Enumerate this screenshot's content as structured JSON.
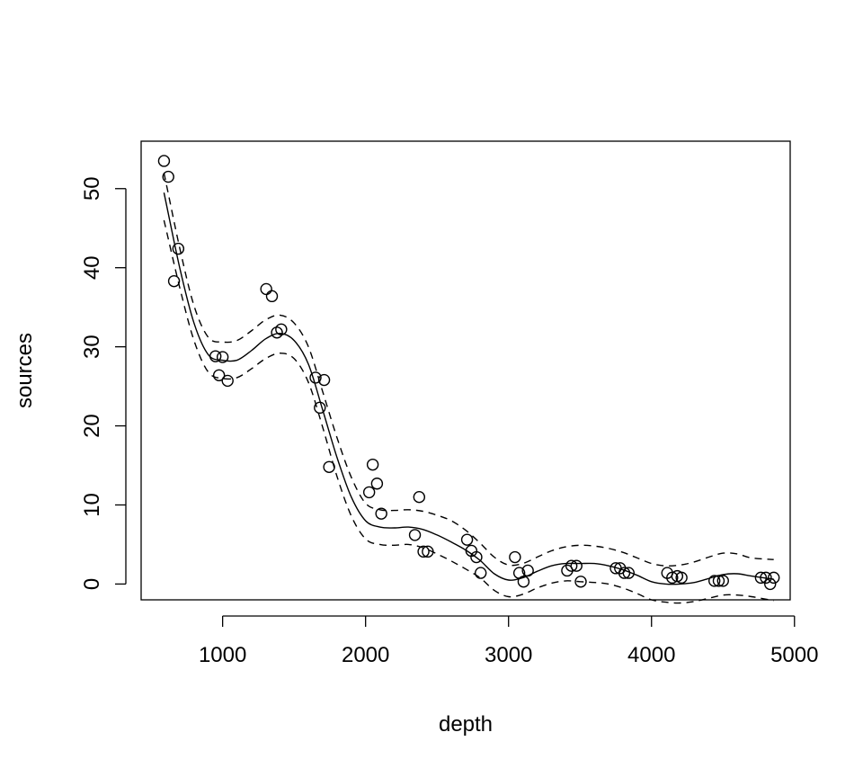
{
  "chart_data": {
    "type": "scatter",
    "xlabel": "depth",
    "ylabel": "sources",
    "xlim": [
      430,
      4970
    ],
    "ylim": [
      -2,
      56
    ],
    "x_ticks": [
      1000,
      2000,
      3000,
      4000,
      5000
    ],
    "y_ticks": [
      0,
      10,
      20,
      30,
      40,
      50
    ],
    "x_tick_labels": [
      "1000",
      "2000",
      "3000",
      "4000",
      "5000"
    ],
    "y_tick_labels": [
      "0",
      "10",
      "20",
      "30",
      "40",
      "50"
    ],
    "grid": false,
    "points": [
      [
        590,
        53.5
      ],
      [
        620,
        51.5
      ],
      [
        660,
        38.3
      ],
      [
        690,
        42.4
      ],
      [
        950,
        28.8
      ],
      [
        975,
        26.4
      ],
      [
        1000,
        28.7
      ],
      [
        1035,
        25.7
      ],
      [
        1305,
        37.3
      ],
      [
        1345,
        36.4
      ],
      [
        1380,
        31.8
      ],
      [
        1410,
        32.2
      ],
      [
        1650,
        26.1
      ],
      [
        1680,
        22.3
      ],
      [
        1710,
        25.8
      ],
      [
        1745,
        14.8
      ],
      [
        2025,
        11.6
      ],
      [
        2050,
        15.1
      ],
      [
        2080,
        12.7
      ],
      [
        2110,
        8.9
      ],
      [
        2345,
        6.2
      ],
      [
        2375,
        11.0
      ],
      [
        2405,
        4.1
      ],
      [
        2435,
        4.1
      ],
      [
        2710,
        5.6
      ],
      [
        2740,
        4.2
      ],
      [
        2775,
        3.4
      ],
      [
        2805,
        1.4
      ],
      [
        3045,
        3.4
      ],
      [
        3075,
        1.4
      ],
      [
        3105,
        0.3
      ],
      [
        3135,
        1.7
      ],
      [
        3410,
        1.7
      ],
      [
        3440,
        2.3
      ],
      [
        3475,
        2.3
      ],
      [
        3505,
        0.3
      ],
      [
        3750,
        2.0
      ],
      [
        3780,
        2.0
      ],
      [
        3810,
        1.4
      ],
      [
        3840,
        1.4
      ],
      [
        4110,
        1.4
      ],
      [
        4145,
        0.8
      ],
      [
        4180,
        1.0
      ],
      [
        4210,
        0.8
      ],
      [
        4440,
        0.4
      ],
      [
        4470,
        0.4
      ],
      [
        4500,
        0.4
      ],
      [
        4765,
        0.8
      ],
      [
        4800,
        0.8
      ],
      [
        4830,
        0.0
      ],
      [
        4855,
        0.8
      ]
    ],
    "series": [
      {
        "style": "solid",
        "x": [
          590,
          700,
          800,
          900,
          1000,
          1100,
          1200,
          1300,
          1400,
          1500,
          1600,
          1700,
          1800,
          1900,
          2000,
          2100,
          2200,
          2300,
          2400,
          2500,
          2600,
          2700,
          2800,
          2900,
          3000,
          3100,
          3200,
          3300,
          3400,
          3500,
          3600,
          3700,
          3800,
          3900,
          4000,
          4100,
          4200,
          4300,
          4400,
          4500,
          4600,
          4700,
          4855
        ],
        "y": [
          49.5,
          40.0,
          33.0,
          29.0,
          28.3,
          28.3,
          29.5,
          31.0,
          31.7,
          30.8,
          27.8,
          22.0,
          16.0,
          11.0,
          8.0,
          7.2,
          7.1,
          7.2,
          6.9,
          6.2,
          5.3,
          4.3,
          3.0,
          1.3,
          0.5,
          0.8,
          1.6,
          2.3,
          2.6,
          2.6,
          2.6,
          2.3,
          1.8,
          1.1,
          0.3,
          0.0,
          0.0,
          0.2,
          0.7,
          1.2,
          1.3,
          1.0,
          0.6
        ]
      },
      {
        "style": "dashed",
        "x": [
          590,
          700,
          800,
          900,
          1000,
          1100,
          1200,
          1300,
          1400,
          1500,
          1600,
          1700,
          1800,
          1900,
          2000,
          2100,
          2200,
          2300,
          2400,
          2500,
          2600,
          2700,
          2800,
          2900,
          3000,
          3100,
          3200,
          3300,
          3400,
          3500,
          3600,
          3700,
          3800,
          3900,
          4000,
          4100,
          4200,
          4300,
          4400,
          4500,
          4600,
          4700,
          4855
        ],
        "y": [
          52.0,
          42.5,
          35.2,
          31.2,
          30.6,
          30.8,
          32.0,
          33.4,
          34.0,
          33.0,
          30.0,
          24.3,
          18.5,
          13.5,
          10.2,
          9.4,
          9.3,
          9.4,
          9.2,
          8.7,
          8.0,
          6.8,
          5.2,
          3.4,
          2.4,
          2.6,
          3.4,
          4.2,
          4.7,
          4.9,
          4.8,
          4.5,
          4.0,
          3.3,
          2.6,
          2.3,
          2.4,
          2.8,
          3.4,
          3.9,
          3.8,
          3.3,
          3.1
        ]
      },
      {
        "style": "dashed",
        "x": [
          590,
          700,
          800,
          900,
          1000,
          1100,
          1200,
          1300,
          1400,
          1500,
          1600,
          1700,
          1800,
          1900,
          2000,
          2100,
          2200,
          2300,
          2400,
          2500,
          2600,
          2700,
          2800,
          2900,
          3000,
          3100,
          3200,
          3300,
          3400,
          3500,
          3600,
          3700,
          3800,
          3900,
          4000,
          4100,
          4200,
          4300,
          4400,
          4500,
          4600,
          4700,
          4855
        ],
        "y": [
          46.0,
          37.5,
          30.8,
          26.8,
          26.0,
          26.1,
          27.2,
          28.5,
          29.2,
          28.5,
          25.5,
          19.8,
          13.6,
          8.6,
          5.7,
          5.0,
          4.9,
          5.0,
          4.6,
          3.8,
          2.9,
          1.9,
          0.8,
          -0.8,
          -1.6,
          -1.3,
          -0.5,
          0.1,
          0.4,
          0.3,
          0.2,
          0.0,
          -0.5,
          -1.2,
          -2.0,
          -2.3,
          -2.4,
          -2.2,
          -1.8,
          -1.4,
          -1.4,
          -1.6,
          -2.1
        ]
      }
    ]
  }
}
